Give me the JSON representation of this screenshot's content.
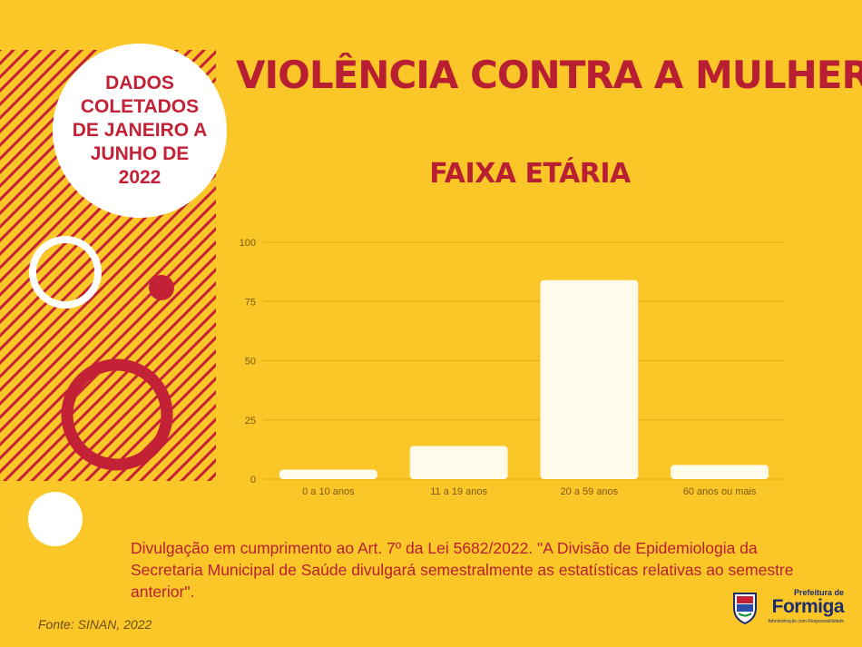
{
  "badge": {
    "text": "DADOS COLETADOS DE JANEIRO A JUNHO DE 2022"
  },
  "title": "VIOLÊNCIA CONTRA A MULHER",
  "chart_data": {
    "type": "bar",
    "title": "FAIXA ETÁRIA",
    "categories": [
      "0 a 10 anos",
      "11 a 19 anos",
      "20 a 59 anos",
      "60 anos ou mais"
    ],
    "values": [
      4,
      14,
      84,
      6
    ],
    "ylim": [
      0,
      100
    ],
    "yticks": [
      0,
      25,
      50,
      75,
      100
    ],
    "grid": true,
    "bar_color": "#FFFBEA",
    "grid_color": "#E7A818"
  },
  "note": "Divulgação em cumprimento ao Art. 7º  da Lei 5682/2022. \"A Divisão de Epidemiologia da Secretaria Municipal de Saúde divulgará semestralmente as estatísticas relativas ao semestre anterior\".",
  "source": "Fonte: SINAN, 2022",
  "logo": {
    "line1": "Prefeitura de",
    "line2": "Formiga",
    "line3": "Administração com Responsabilidade"
  },
  "colors": {
    "background": "#FBC628",
    "accent": "#B81F33"
  }
}
